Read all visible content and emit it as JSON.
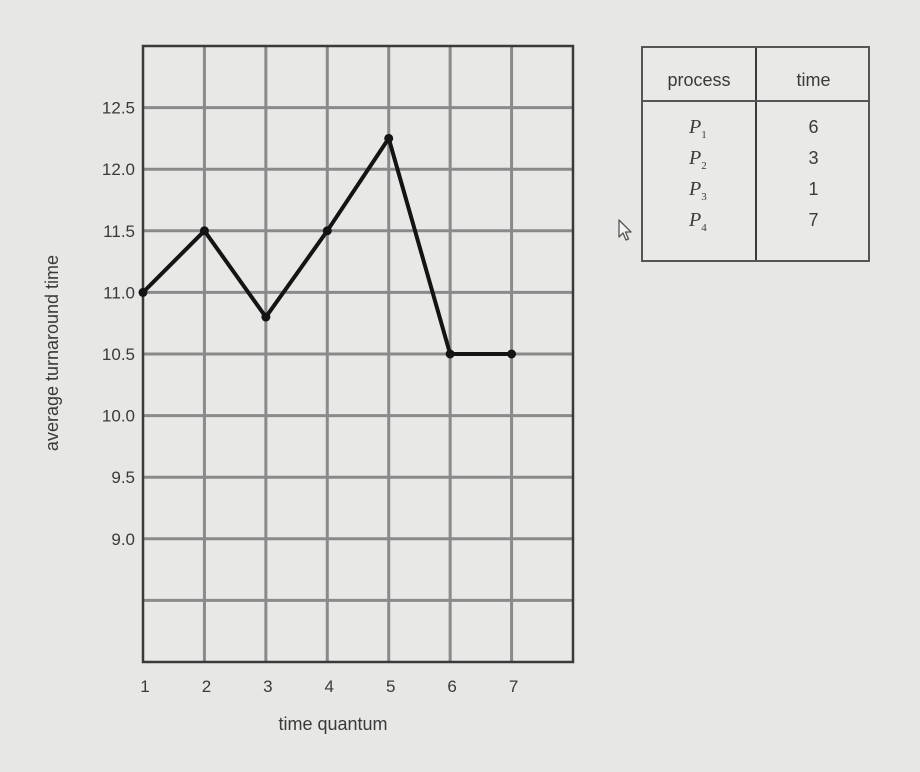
{
  "chart_data": {
    "type": "line",
    "title": "",
    "xlabel": "time quantum",
    "ylabel": "average turnaround time",
    "x": [
      1,
      2,
      3,
      4,
      5,
      6,
      7
    ],
    "series": [
      {
        "name": "average turnaround time",
        "values": [
          11.0,
          11.5,
          10.8,
          11.5,
          12.25,
          10.5,
          10.5
        ]
      }
    ],
    "xticks": [
      "1",
      "2",
      "3",
      "4",
      "5",
      "6",
      "7"
    ],
    "yticks": [
      9.0,
      9.5,
      10.0,
      10.5,
      11.0,
      11.5,
      12.0,
      12.5
    ],
    "ytick_labels": [
      "9.0",
      "9.5",
      "10.0",
      "10.5",
      "11.0",
      "11.5",
      "12.0",
      "12.5"
    ],
    "xlim": [
      1,
      8
    ],
    "ylim": [
      8.0,
      13.0
    ],
    "grid": true,
    "colors": {
      "line": "#141414",
      "grid": "#8a8a8a",
      "frame": "#3a3a3a",
      "plot_bg": "#e8e8e6"
    }
  },
  "process_table": {
    "headers": {
      "process": "process",
      "time": "time"
    },
    "rows": [
      {
        "name": "P",
        "sub": "1",
        "time": "6"
      },
      {
        "name": "P",
        "sub": "2",
        "time": "3"
      },
      {
        "name": "P",
        "sub": "3",
        "time": "1"
      },
      {
        "name": "P",
        "sub": "4",
        "time": "7"
      }
    ]
  },
  "cursor": {
    "icon": "mouse-pointer-icon"
  }
}
